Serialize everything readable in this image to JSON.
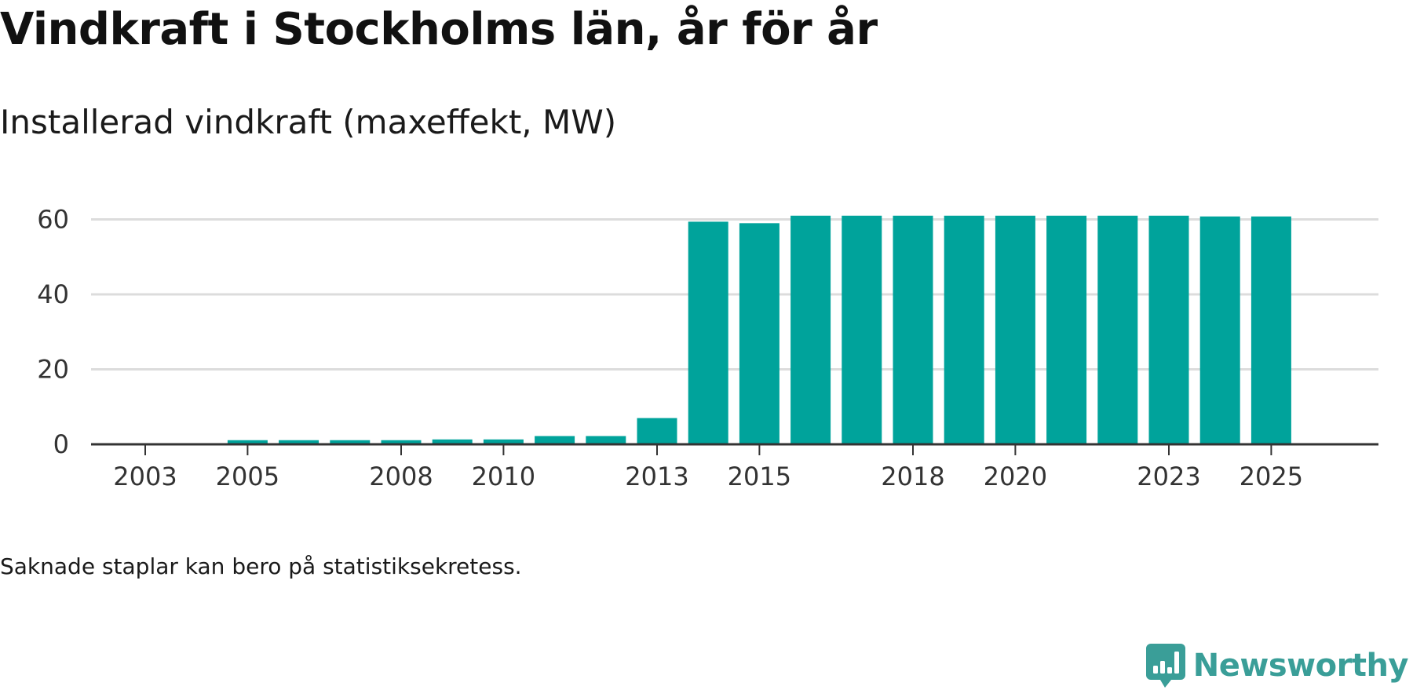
{
  "header": {
    "title": "Vindkraft i Stockholms län, år för år",
    "subtitle": "Installerad vindkraft (maxeffekt, MW)"
  },
  "footer": {
    "note": "Saknade staplar kan bero på statistiksekretess.",
    "brand": "Newsworthy"
  },
  "colors": {
    "bar": "#00a39b",
    "grid": "#dcdcdc",
    "axis": "#333333",
    "brand": "#3a9e98"
  },
  "icons": {
    "brand": "speech-bubble-bar-chart-icon"
  },
  "chart_data": {
    "type": "bar",
    "title": "Vindkraft i Stockholms län, år för år",
    "subtitle": "Installerad vindkraft (maxeffekt, MW)",
    "xlabel": "",
    "ylabel": "",
    "categories": [
      "2003",
      "2004",
      "2005",
      "2006",
      "2007",
      "2008",
      "2009",
      "2010",
      "2011",
      "2012",
      "2013",
      "2014",
      "2015",
      "2016",
      "2017",
      "2018",
      "2019",
      "2020",
      "2021",
      "2022",
      "2023",
      "2024",
      "2025"
    ],
    "values": [
      0,
      0,
      1.1,
      1.1,
      1.1,
      1.1,
      1.3,
      1.3,
      2.2,
      2.2,
      7.0,
      59.4,
      59.0,
      61.0,
      61.0,
      61.0,
      61.0,
      61.0,
      61.0,
      61.0,
      61.0,
      60.8,
      60.8
    ],
    "x_tick_labels": [
      "2003",
      "2005",
      "2008",
      "2010",
      "2013",
      "2015",
      "2018",
      "2020",
      "2023",
      "2025"
    ],
    "y_ticks": [
      "0",
      "20",
      "40",
      "60"
    ],
    "ylim": [
      0,
      62
    ],
    "grid": true,
    "legend": "none"
  }
}
